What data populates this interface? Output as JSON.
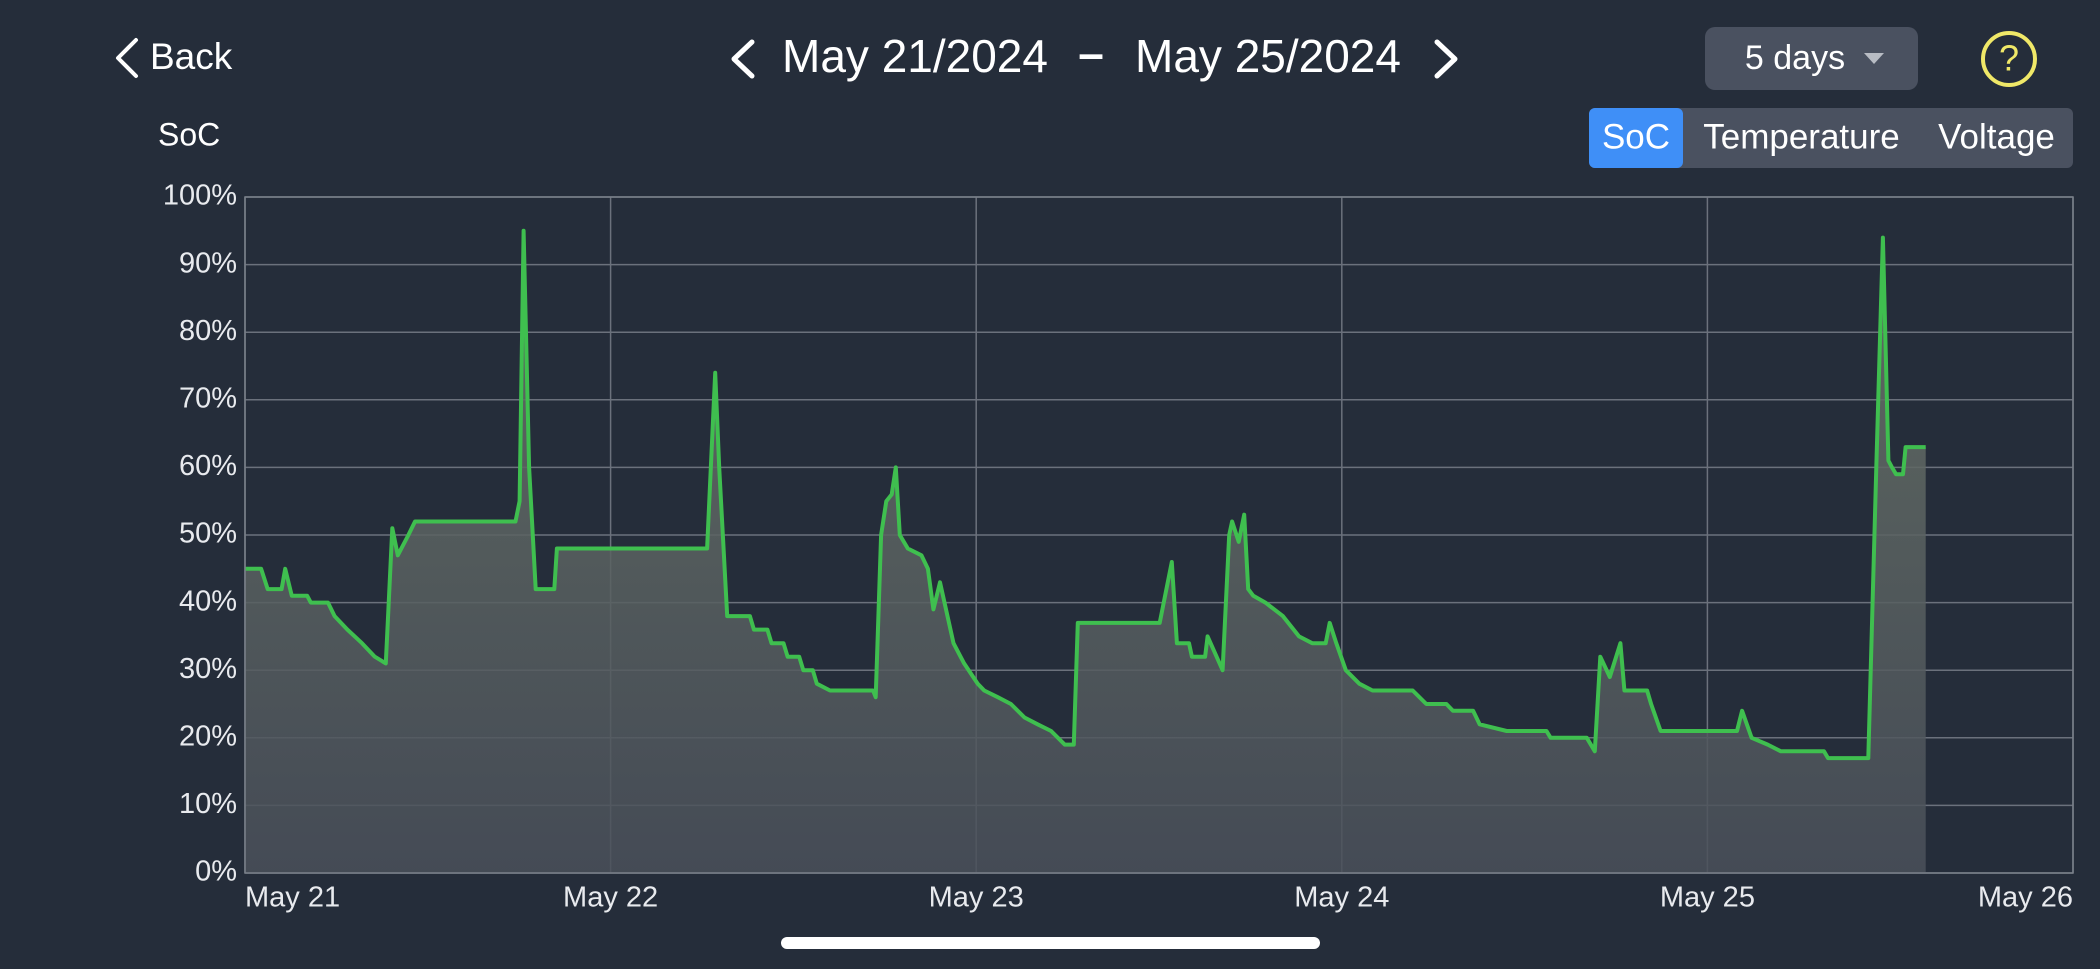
{
  "header": {
    "back": "Back",
    "start_date": "May 21/2024",
    "separator": "–",
    "end_date": "May 25/2024",
    "range": "5 days",
    "help": "?"
  },
  "tabs": {
    "items": [
      "SoC",
      "Temperature",
      "Voltage"
    ],
    "active": 0
  },
  "chart_data": {
    "type": "line",
    "ylabel": "SoC",
    "color": "#3fbf4f",
    "grid": true,
    "xlim": [
      0,
      5
    ],
    "xticks": [
      {
        "value": 0,
        "label": "May 21"
      },
      {
        "value": 1,
        "label": "May 22"
      },
      {
        "value": 2,
        "label": "May 23"
      },
      {
        "value": 3,
        "label": "May 24"
      },
      {
        "value": 4,
        "label": "May 25"
      },
      {
        "value": 5,
        "label": "May 26"
      }
    ],
    "ylim": [
      0,
      100
    ],
    "yticks": [
      {
        "value": 0,
        "label": "0%"
      },
      {
        "value": 10,
        "label": "10%"
      },
      {
        "value": 20,
        "label": "20%"
      },
      {
        "value": 30,
        "label": "30%"
      },
      {
        "value": 40,
        "label": "40%"
      },
      {
        "value": 50,
        "label": "50%"
      },
      {
        "value": 60,
        "label": "60%"
      },
      {
        "value": 70,
        "label": "70%"
      },
      {
        "value": 80,
        "label": "80%"
      },
      {
        "value": 90,
        "label": "90%"
      },
      {
        "value": 100,
        "label": "100%"
      }
    ],
    "x": [
      0,
      0.044,
      0.062,
      0.1,
      0.11,
      0.128,
      0.17,
      0.18,
      0.227,
      0.245,
      0.28,
      0.32,
      0.355,
      0.385,
      0.403,
      0.418,
      0.447,
      0.465,
      0.74,
      0.751,
      0.762,
      0.777,
      0.795,
      0.846,
      0.853,
      1.264,
      1.286,
      1.297,
      1.319,
      1.381,
      1.392,
      1.429,
      1.44,
      1.473,
      1.484,
      1.516,
      1.527,
      1.553,
      1.564,
      1.6,
      1.718,
      1.725,
      1.74,
      1.754,
      1.769,
      1.78,
      1.791,
      1.813,
      1.85,
      1.868,
      1.883,
      1.901,
      1.938,
      1.967,
      2.004,
      2.022,
      2.059,
      2.095,
      2.132,
      2.168,
      2.205,
      2.242,
      2.267,
      2.278,
      2.502,
      2.535,
      2.549,
      2.582,
      2.59,
      2.626,
      2.633,
      2.674,
      2.692,
      2.7,
      2.718,
      2.733,
      2.744,
      2.758,
      2.791,
      2.839,
      2.883,
      2.919,
      2.956,
      2.967,
      2.985,
      3.011,
      3.048,
      3.084,
      3.194,
      3.231,
      3.286,
      3.304,
      3.359,
      3.377,
      3.451,
      3.56,
      3.571,
      3.67,
      3.692,
      3.707,
      3.733,
      3.762,
      3.773,
      3.835,
      3.846,
      3.872,
      4.081,
      4.095,
      4.121,
      4.165,
      4.201,
      4.319,
      4.33,
      4.44,
      4.462,
      4.48,
      4.495,
      4.505,
      4.516,
      4.535,
      4.542,
      4.597
    ],
    "values": [
      45,
      45,
      42,
      42,
      45,
      41,
      41,
      40,
      40,
      38,
      36,
      34,
      32,
      31,
      51,
      47,
      50,
      52,
      52,
      55,
      95,
      60,
      42,
      42,
      48,
      48,
      74,
      60,
      38,
      38,
      36,
      36,
      34,
      34,
      32,
      32,
      30,
      30,
      28,
      27,
      27,
      26,
      50,
      55,
      56,
      60,
      50,
      48,
      47,
      45,
      39,
      43,
      34,
      31,
      28,
      27,
      26,
      25,
      23,
      22,
      21,
      19,
      19,
      37,
      37,
      46,
      34,
      34,
      32,
      32,
      35,
      30,
      50,
      52,
      49,
      53,
      42,
      41,
      40,
      38,
      35,
      34,
      34,
      37,
      34,
      30,
      28,
      27,
      27,
      25,
      25,
      24,
      24,
      22,
      21,
      21,
      20,
      20,
      18,
      32,
      29,
      34,
      27,
      27,
      25,
      21,
      21,
      24,
      20,
      19,
      18,
      18,
      17,
      17,
      60,
      94,
      61,
      60,
      59,
      59,
      63,
      63
    ]
  }
}
